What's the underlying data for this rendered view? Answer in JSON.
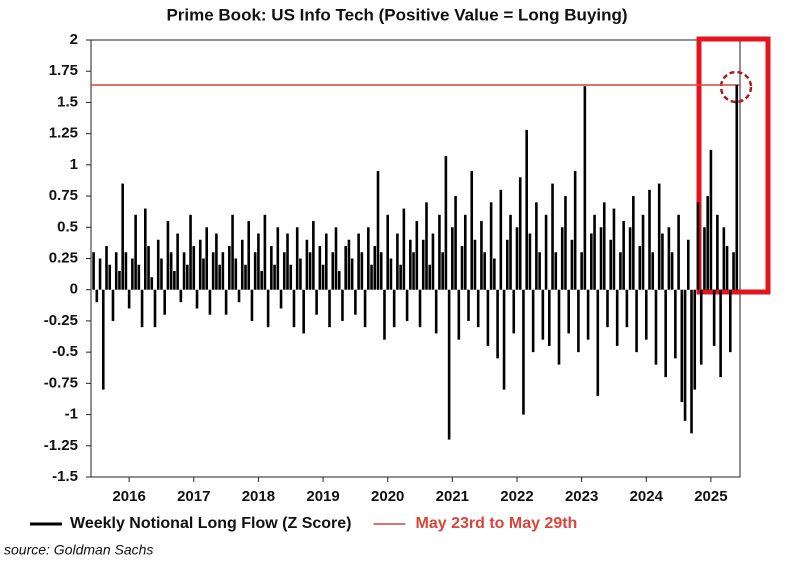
{
  "chart_data": {
    "type": "bar",
    "title": "Prime Book: US Info Tech (Positive Value = Long Buying)",
    "source": "source: Goldman Sachs",
    "xlim": [
      2015.41,
      2025.45
    ],
    "xticks": [
      2016,
      2017,
      2018,
      2019,
      2020,
      2021,
      2022,
      2023,
      2024,
      2025
    ],
    "ylim": [
      -1.5,
      2
    ],
    "yticks": [
      -1.5,
      -1.25,
      -1,
      -0.75,
      -0.5,
      -0.25,
      0,
      0.25,
      0.5,
      0.75,
      1,
      1.25,
      1.5,
      1.75,
      2
    ],
    "grid": false,
    "x": [
      2015.45,
      2015.5,
      2015.55,
      2015.6,
      2015.65,
      2015.7,
      2015.75,
      2015.8,
      2015.85,
      2015.9,
      2015.95,
      2016,
      2016.05,
      2016.1,
      2016.15,
      2016.2,
      2016.25,
      2016.3,
      2016.35,
      2016.4,
      2016.45,
      2016.5,
      2016.55,
      2016.6,
      2016.65,
      2016.7,
      2016.75,
      2016.8,
      2016.85,
      2016.9,
      2016.95,
      2017,
      2017.05,
      2017.1,
      2017.15,
      2017.2,
      2017.25,
      2017.3,
      2017.35,
      2017.4,
      2017.45,
      2017.5,
      2017.55,
      2017.6,
      2017.65,
      2017.7,
      2017.75,
      2017.8,
      2017.85,
      2017.9,
      2017.95,
      2018,
      2018.05,
      2018.1,
      2018.15,
      2018.2,
      2018.25,
      2018.3,
      2018.35,
      2018.4,
      2018.45,
      2018.5,
      2018.55,
      2018.6,
      2018.65,
      2018.7,
      2018.75,
      2018.8,
      2018.85,
      2018.9,
      2018.95,
      2019,
      2019.05,
      2019.1,
      2019.15,
      2019.2,
      2019.25,
      2019.3,
      2019.35,
      2019.4,
      2019.45,
      2019.5,
      2019.55,
      2019.6,
      2019.65,
      2019.7,
      2019.75,
      2019.8,
      2019.85,
      2019.9,
      2019.95,
      2020,
      2020.05,
      2020.1,
      2020.15,
      2020.2,
      2020.25,
      2020.3,
      2020.35,
      2020.4,
      2020.45,
      2020.5,
      2020.55,
      2020.6,
      2020.65,
      2020.7,
      2020.75,
      2020.8,
      2020.85,
      2020.9,
      2020.95,
      2021,
      2021.05,
      2021.1,
      2021.15,
      2021.2,
      2021.25,
      2021.3,
      2021.35,
      2021.4,
      2021.45,
      2021.5,
      2021.55,
      2021.6,
      2021.65,
      2021.7,
      2021.75,
      2021.8,
      2021.85,
      2021.9,
      2021.95,
      2022,
      2022.05,
      2022.1,
      2022.15,
      2022.2,
      2022.25,
      2022.3,
      2022.35,
      2022.4,
      2022.45,
      2022.5,
      2022.55,
      2022.6,
      2022.65,
      2022.7,
      2022.75,
      2022.8,
      2022.85,
      2022.9,
      2022.95,
      2023,
      2023.05,
      2023.1,
      2023.15,
      2023.2,
      2023.25,
      2023.3,
      2023.35,
      2023.4,
      2023.45,
      2023.5,
      2023.55,
      2023.6,
      2023.65,
      2023.7,
      2023.75,
      2023.8,
      2023.85,
      2023.9,
      2023.95,
      2024,
      2024.05,
      2024.1,
      2024.15,
      2024.2,
      2024.25,
      2024.3,
      2024.35,
      2024.4,
      2024.45,
      2024.5,
      2024.55,
      2024.6,
      2024.65,
      2024.7,
      2024.75,
      2024.8,
      2024.85,
      2024.9,
      2024.95,
      2025,
      2025.05,
      2025.1,
      2025.15,
      2025.2,
      2025.25,
      2025.3,
      2025.35,
      2025.4
    ],
    "series": [
      {
        "name": "Weekly Notional Long Flow (Z Score)",
        "color": "#000000",
        "values": [
          0.3,
          -0.1,
          0.25,
          -0.8,
          0.35,
          0.2,
          -0.25,
          0.3,
          0.15,
          0.85,
          0.3,
          -0.15,
          0.25,
          0.6,
          0.2,
          -0.3,
          0.65,
          0.35,
          0.1,
          -0.3,
          0.4,
          0.25,
          -0.2,
          0.55,
          0.3,
          0.15,
          0.45,
          -0.1,
          0.3,
          0.2,
          0.6,
          0.35,
          -0.15,
          0.4,
          0.25,
          0.5,
          -0.2,
          0.3,
          0.45,
          0.2,
          0.3,
          -0.2,
          0.35,
          0.6,
          0.25,
          -0.1,
          0.4,
          0.2,
          0.55,
          -0.25,
          0.3,
          0.45,
          0.15,
          0.6,
          -0.3,
          0.35,
          0.2,
          0.5,
          -0.15,
          0.3,
          0.45,
          0.2,
          -0.3,
          0.5,
          0.25,
          -0.35,
          0.4,
          0.3,
          0.55,
          -0.2,
          0.35,
          0.2,
          0.45,
          -0.3,
          0.3,
          0.5,
          0.15,
          -0.25,
          0.35,
          0.4,
          0.25,
          -0.2,
          0.45,
          0.3,
          -0.3,
          0.5,
          0.2,
          0.35,
          0.95,
          0.3,
          -0.4,
          0.6,
          0.25,
          -0.3,
          0.45,
          0.2,
          0.65,
          -0.25,
          0.4,
          0.3,
          0.55,
          -0.3,
          0.4,
          0.7,
          0.2,
          0.45,
          -0.35,
          0.6,
          0.3,
          1.07,
          -1.2,
          0.5,
          0.75,
          -0.4,
          0.35,
          0.6,
          -0.25,
          0.95,
          0.4,
          -0.3,
          0.55,
          0.3,
          -0.45,
          0.7,
          0.25,
          -0.55,
          0.8,
          -0.8,
          0.4,
          0.6,
          -0.35,
          0.5,
          0.9,
          -1.0,
          1.28,
          0.45,
          -0.5,
          0.7,
          0.3,
          -0.4,
          0.6,
          -0.45,
          0.85,
          0.3,
          -0.6,
          0.5,
          0.75,
          -0.35,
          0.4,
          0.95,
          -0.5,
          0.3,
          1.63,
          -0.4,
          0.45,
          0.6,
          -0.85,
          0.5,
          0.7,
          -0.3,
          0.4,
          0.65,
          -0.45,
          0.3,
          0.55,
          -0.3,
          0.5,
          0.75,
          -0.5,
          0.35,
          0.6,
          -0.4,
          0.8,
          0.3,
          -0.6,
          0.85,
          0.45,
          -0.7,
          0.5,
          0.3,
          -0.55,
          0.6,
          -0.9,
          -1.05,
          0.4,
          -1.15,
          -0.8,
          0.7,
          -0.6,
          0.5,
          0.75,
          1.12,
          -0.45,
          0.6,
          -0.7,
          0.5,
          0.35,
          -0.5,
          0.3,
          1.64
        ]
      }
    ],
    "reference_line": {
      "value": 1.64,
      "label": "May 23rd to May 29th",
      "color": "#d9453b"
    }
  }
}
